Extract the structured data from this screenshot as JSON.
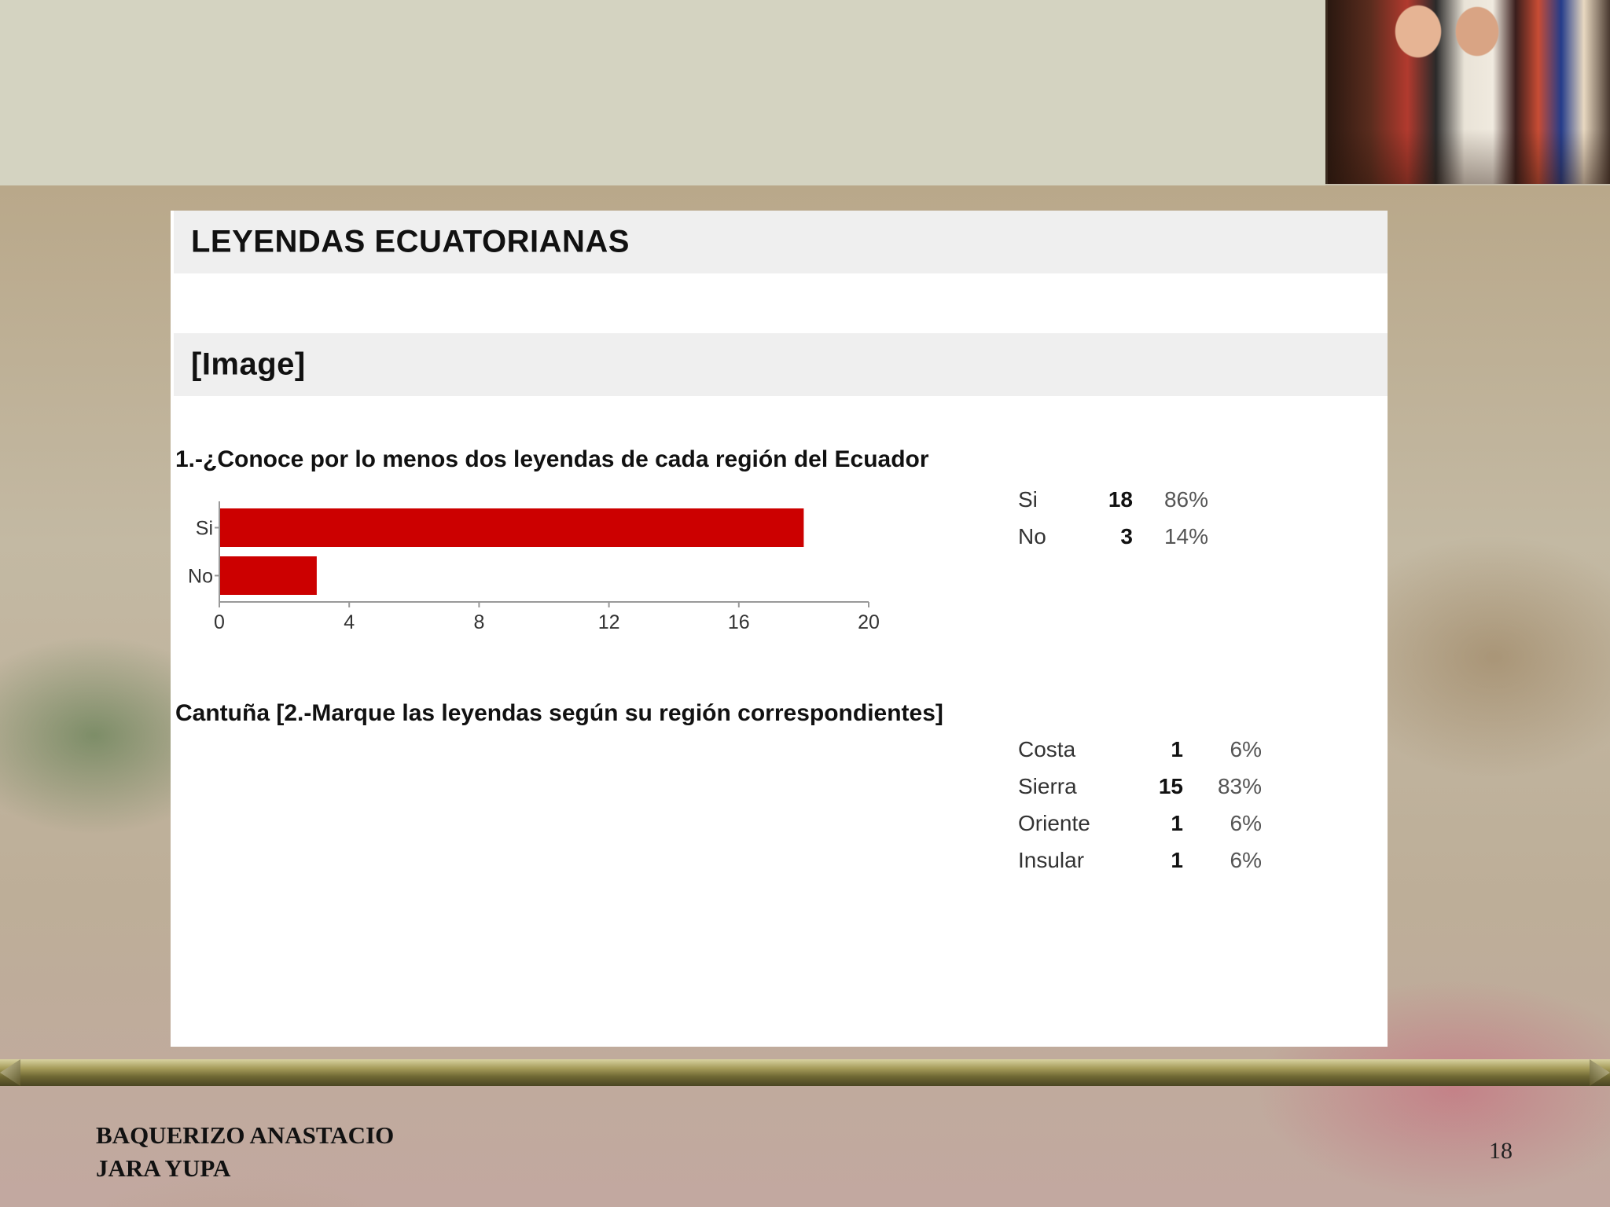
{
  "slide": {
    "section_title": "LEYENDAS ECUATORIANAS",
    "image_placeholder": "[Image]",
    "authors": [
      "BAQUERIZO ANASTACIO",
      "JARA YUPA"
    ],
    "page_number": "18"
  },
  "colors": {
    "chart1_bar": "#cc0000",
    "chart2_bar": "#dcc800",
    "header_band": "#d4d3c1",
    "panel_bg": "#ffffff"
  },
  "chart_data": [
    {
      "type": "bar",
      "orientation": "horizontal",
      "title": "1.-¿Conoce por lo menos dos leyendas de cada región del Ecuador",
      "categories": [
        "Si",
        "No"
      ],
      "values": [
        18,
        3
      ],
      "counts": [
        "18",
        "3"
      ],
      "percentages": [
        "86%",
        "14%"
      ],
      "xlim": [
        0,
        20
      ],
      "xticks": [
        0,
        4,
        8,
        12,
        16,
        20
      ],
      "grid": false
    },
    {
      "type": "bar",
      "orientation": "horizontal",
      "title": "Cantuña [2.-Marque las leyendas según su región correspondientes]",
      "categories": [
        "Costa",
        "Sierra",
        "Oriente",
        "Insular"
      ],
      "values": [
        1,
        15,
        1,
        1
      ],
      "counts": [
        "1",
        "15",
        "1",
        "1"
      ],
      "percentages": [
        "6%",
        "83%",
        "6%",
        "6%"
      ],
      "xlim": [
        0,
        15
      ],
      "xticks": [
        0,
        3,
        6,
        9,
        12,
        15
      ],
      "grid": false
    }
  ]
}
